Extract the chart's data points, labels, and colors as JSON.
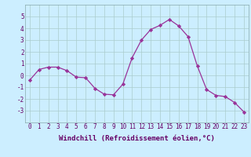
{
  "x": [
    0,
    1,
    2,
    3,
    4,
    5,
    6,
    7,
    8,
    9,
    10,
    11,
    12,
    13,
    14,
    15,
    16,
    17,
    18,
    19,
    20,
    21,
    22,
    23
  ],
  "y": [
    -0.4,
    0.5,
    0.7,
    0.7,
    0.4,
    -0.15,
    -0.2,
    -1.1,
    -1.6,
    -1.65,
    -0.75,
    1.5,
    3.0,
    3.9,
    4.25,
    4.75,
    4.2,
    3.3,
    0.8,
    -1.2,
    -1.7,
    -1.8,
    -2.3,
    -3.1
  ],
  "line_color": "#993399",
  "marker": "D",
  "marker_size": 2.2,
  "bg_color": "#cceeff",
  "grid_color": "#aacccc",
  "xlabel": "Windchill (Refroidissement éolien,°C)",
  "xlabel_fontsize": 6.5,
  "xlabel_color": "#660066",
  "ylim": [
    -4,
    6
  ],
  "xlim": [
    -0.5,
    23.5
  ],
  "yticks": [
    -3,
    -2,
    -1,
    0,
    1,
    2,
    3,
    4,
    5
  ],
  "xticks": [
    0,
    1,
    2,
    3,
    4,
    5,
    6,
    7,
    8,
    9,
    10,
    11,
    12,
    13,
    14,
    15,
    16,
    17,
    18,
    19,
    20,
    21,
    22,
    23
  ],
  "tick_fontsize": 5.5,
  "tick_color": "#660066"
}
